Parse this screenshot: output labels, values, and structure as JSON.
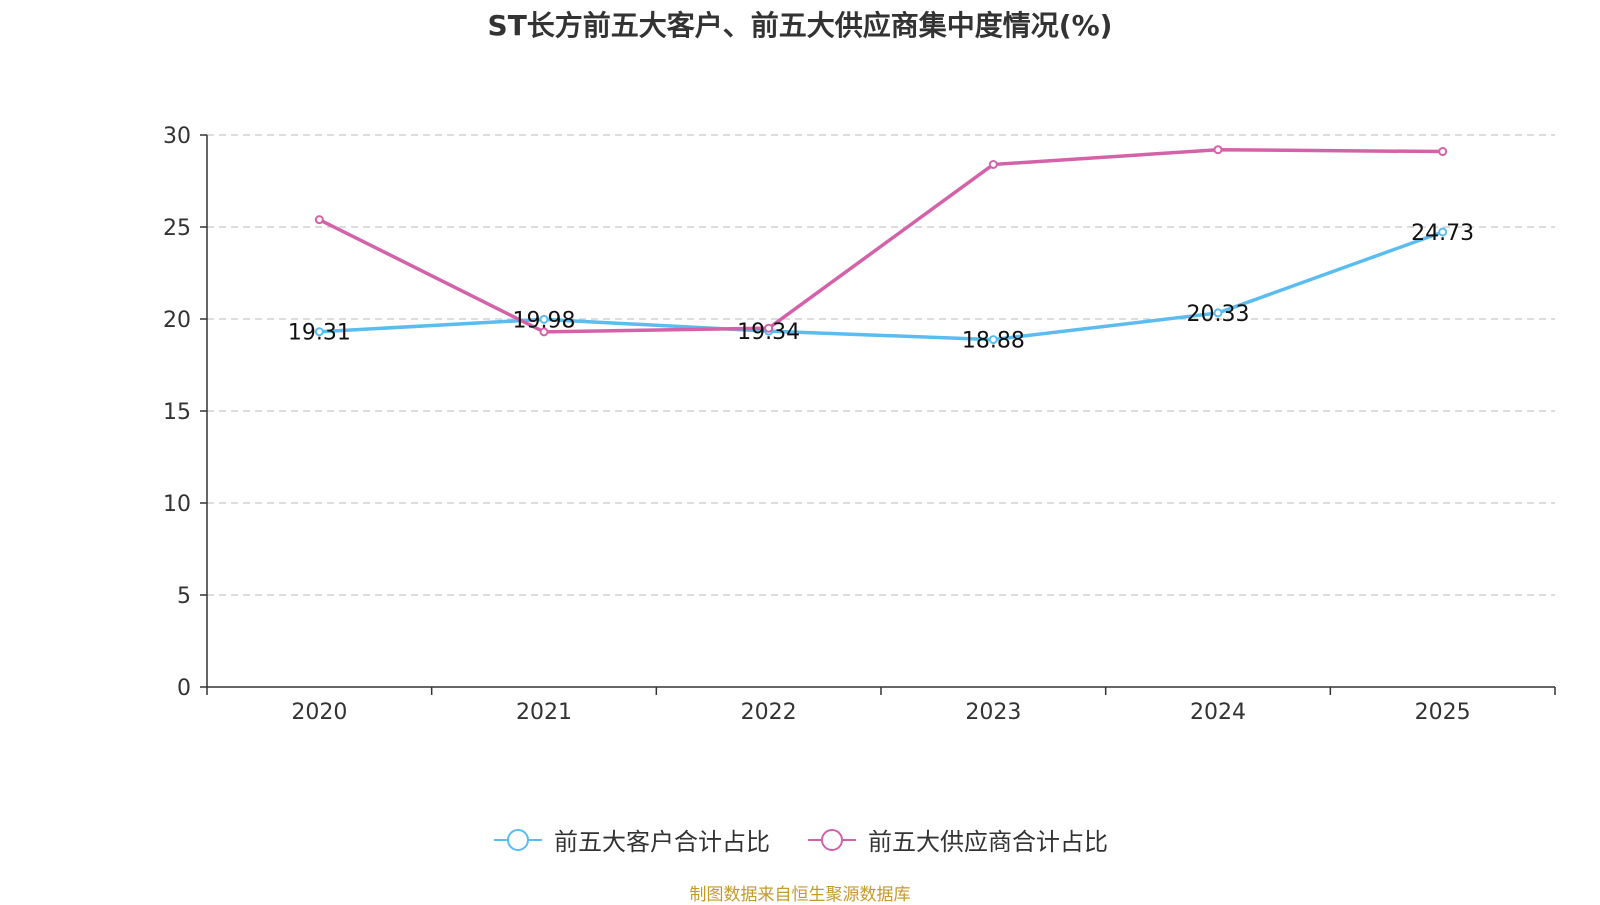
{
  "chart_data": {
    "type": "line",
    "title": "ST长方前五大客户、前五大供应商集中度情况(%)",
    "categories": [
      "2020",
      "2021",
      "2022",
      "2023",
      "2024",
      "2025"
    ],
    "ylim": [
      0,
      30
    ],
    "yticks": [
      0,
      5,
      10,
      15,
      20,
      25,
      30
    ],
    "grid": true,
    "legend_position": "bottom-center",
    "series": [
      {
        "name": "前五大客户合计占比",
        "color": "#5bbcf0",
        "values": [
          19.31,
          19.98,
          19.34,
          18.88,
          20.33,
          24.73
        ],
        "labels": [
          "19.31",
          "19.98",
          "19.34",
          "18.88",
          "20.33",
          "24.73"
        ]
      },
      {
        "name": "前五大供应商合计占比",
        "color": "#d462a8",
        "values": [
          25.4,
          19.3,
          19.5,
          28.4,
          29.2,
          29.1
        ],
        "labels": []
      }
    ]
  },
  "footnote": {
    "text": "制图数据来自恒生聚源数据库",
    "color": "#c49a2a"
  }
}
